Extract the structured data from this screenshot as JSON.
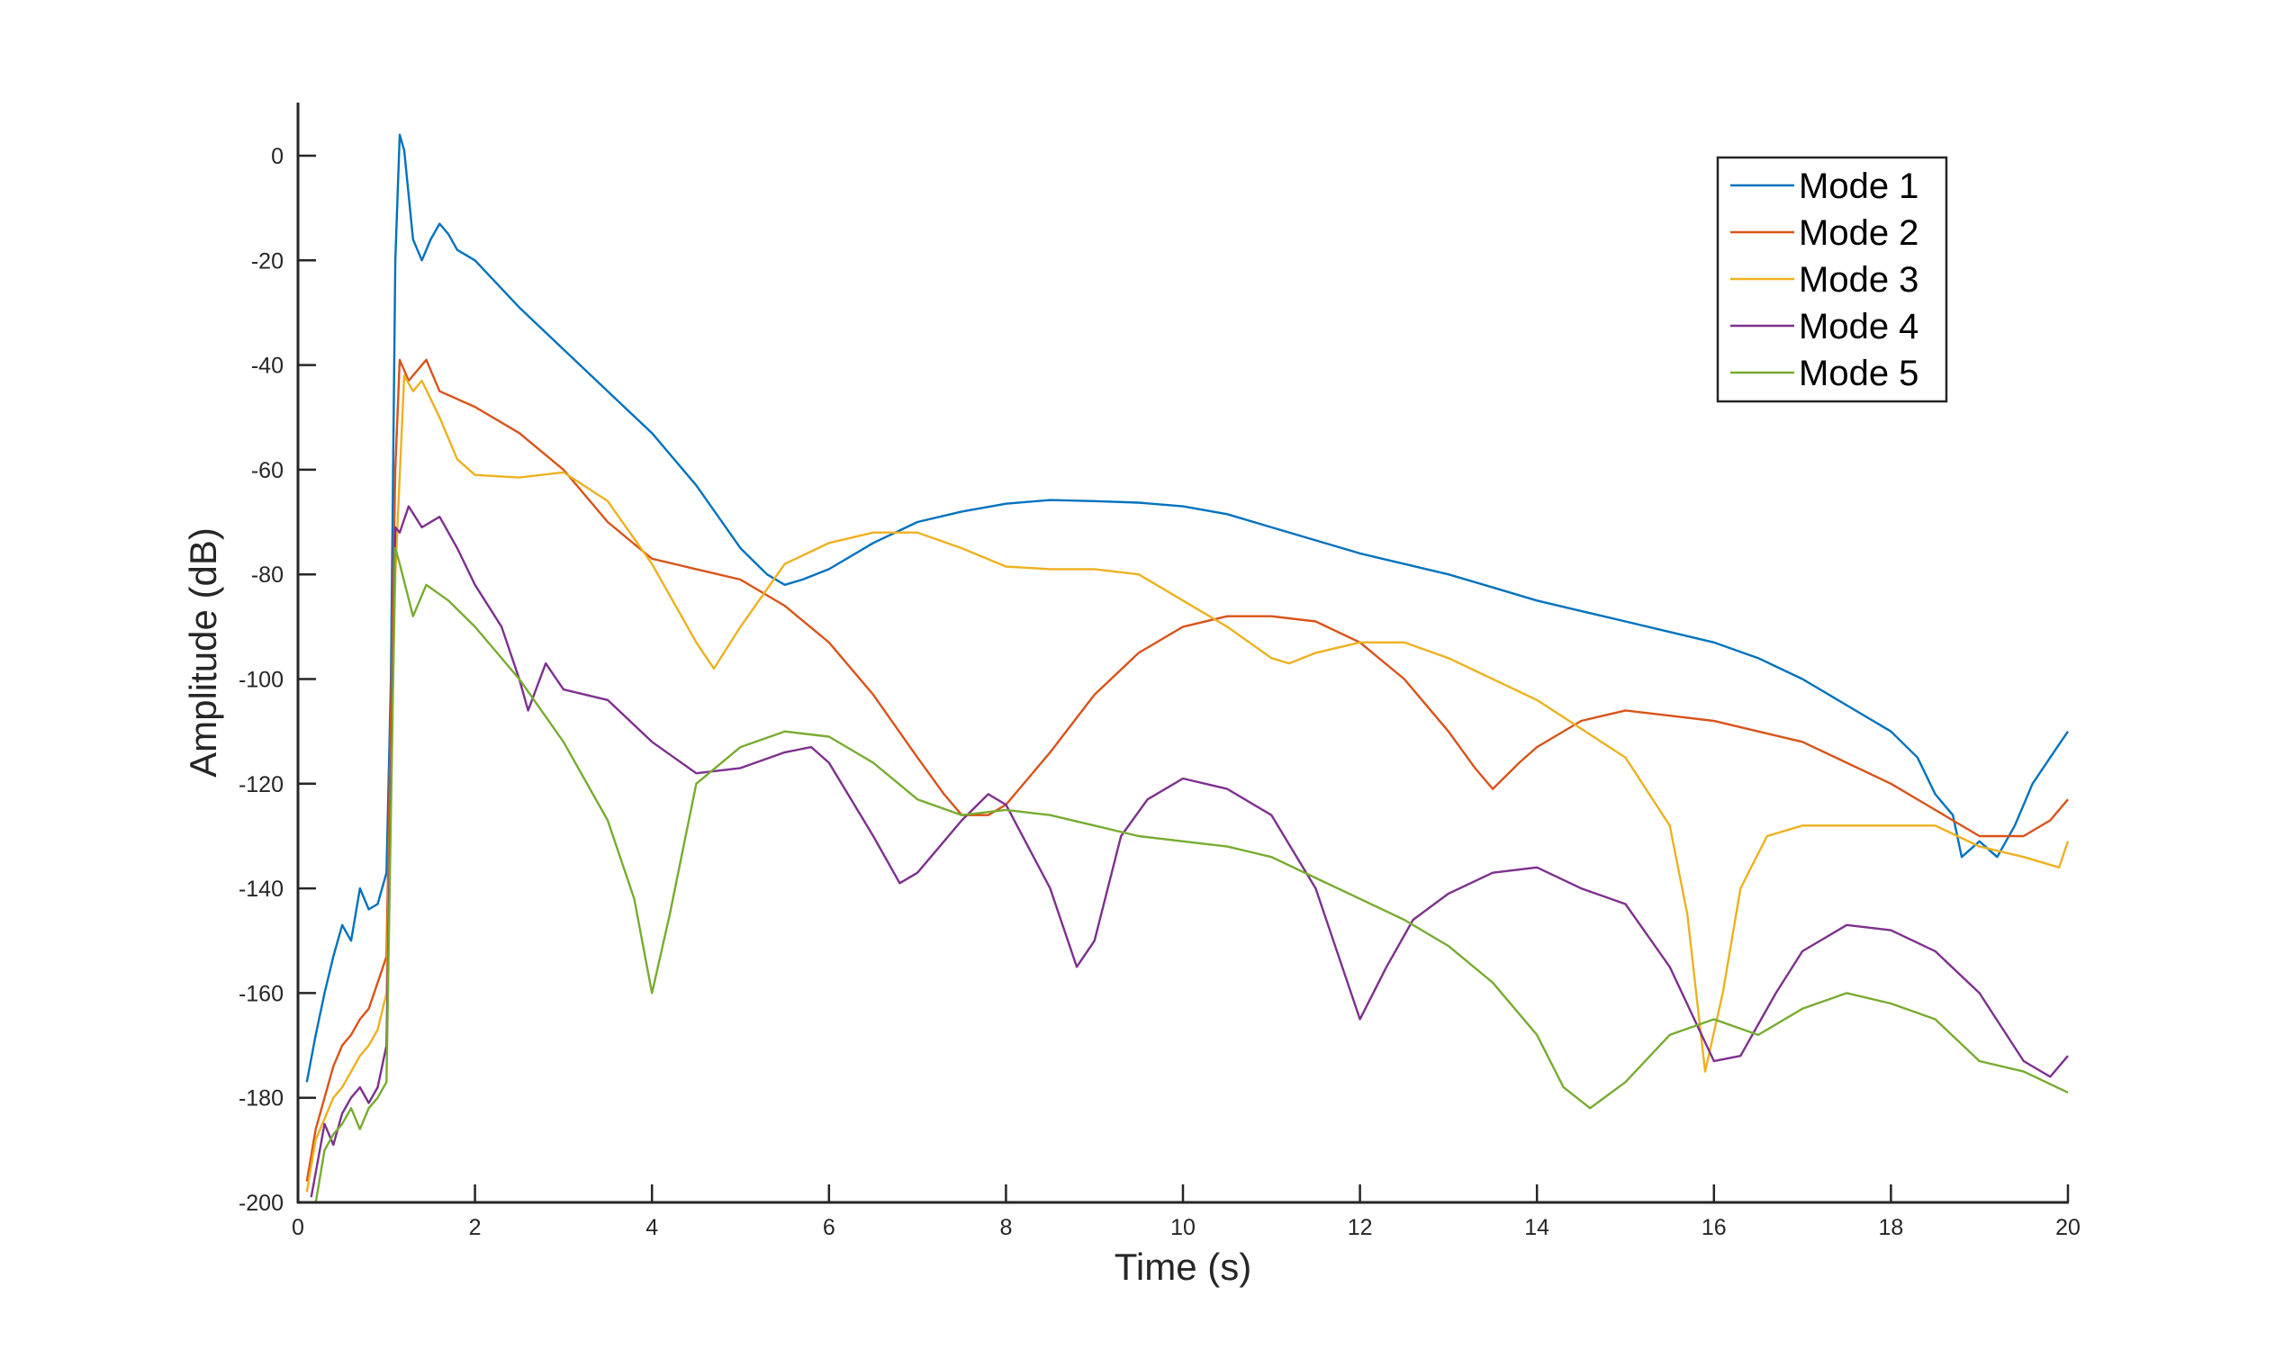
{
  "chart_data": {
    "type": "line",
    "title": "",
    "xlabel": "Time (s)",
    "ylabel": "Amplitude (dB)",
    "xlim": [
      0,
      20
    ],
    "ylim": [
      -200,
      10
    ],
    "xticks": [
      0,
      2,
      4,
      6,
      8,
      10,
      12,
      14,
      16,
      18,
      20
    ],
    "yticks": [
      0,
      -20,
      -40,
      -60,
      -80,
      -100,
      -120,
      -140,
      -160,
      -180,
      -200
    ],
    "grid": false,
    "legend_position": "upper right (inside)",
    "series": [
      {
        "name": "Mode 1",
        "color": "#0072BD",
        "points": [
          [
            0.1,
            -177
          ],
          [
            0.2,
            -168
          ],
          [
            0.3,
            -160
          ],
          [
            0.4,
            -153
          ],
          [
            0.5,
            -147
          ],
          [
            0.6,
            -150
          ],
          [
            0.7,
            -140
          ],
          [
            0.8,
            -144
          ],
          [
            0.9,
            -143
          ],
          [
            1.0,
            -137
          ],
          [
            1.05,
            -100
          ],
          [
            1.1,
            -20
          ],
          [
            1.15,
            4
          ],
          [
            1.2,
            1
          ],
          [
            1.3,
            -16
          ],
          [
            1.4,
            -20
          ],
          [
            1.5,
            -16
          ],
          [
            1.6,
            -13
          ],
          [
            1.7,
            -15
          ],
          [
            1.8,
            -18
          ],
          [
            2.0,
            -20
          ],
          [
            2.5,
            -29
          ],
          [
            3.0,
            -37
          ],
          [
            3.5,
            -45
          ],
          [
            4.0,
            -53
          ],
          [
            4.5,
            -63
          ],
          [
            5.0,
            -75
          ],
          [
            5.3,
            -80
          ],
          [
            5.5,
            -82
          ],
          [
            5.7,
            -81
          ],
          [
            6.0,
            -79
          ],
          [
            6.5,
            -74
          ],
          [
            7.0,
            -70
          ],
          [
            7.5,
            -68
          ],
          [
            8.0,
            -66.5
          ],
          [
            8.5,
            -65.8
          ],
          [
            9.0,
            -66
          ],
          [
            9.5,
            -66.3
          ],
          [
            10.0,
            -67
          ],
          [
            10.5,
            -68.5
          ],
          [
            11.0,
            -71
          ],
          [
            11.5,
            -73.5
          ],
          [
            12.0,
            -76
          ],
          [
            12.5,
            -78
          ],
          [
            13.0,
            -80
          ],
          [
            13.5,
            -82.5
          ],
          [
            14.0,
            -85
          ],
          [
            14.5,
            -87
          ],
          [
            15.0,
            -89
          ],
          [
            15.5,
            -91
          ],
          [
            16.0,
            -93
          ],
          [
            16.5,
            -96
          ],
          [
            17.0,
            -100
          ],
          [
            17.5,
            -105
          ],
          [
            18.0,
            -110
          ],
          [
            18.3,
            -115
          ],
          [
            18.5,
            -122
          ],
          [
            18.7,
            -126
          ],
          [
            18.8,
            -134
          ],
          [
            19.0,
            -131
          ],
          [
            19.2,
            -134
          ],
          [
            19.4,
            -128
          ],
          [
            19.6,
            -120
          ],
          [
            19.8,
            -115
          ],
          [
            20.0,
            -110
          ]
        ]
      },
      {
        "name": "Mode 2",
        "color": "#D95319",
        "points": [
          [
            0.1,
            -196
          ],
          [
            0.2,
            -186
          ],
          [
            0.3,
            -180
          ],
          [
            0.4,
            -174
          ],
          [
            0.5,
            -170
          ],
          [
            0.6,
            -168
          ],
          [
            0.7,
            -165
          ],
          [
            0.8,
            -163
          ],
          [
            0.9,
            -158
          ],
          [
            1.0,
            -153
          ],
          [
            1.1,
            -60
          ],
          [
            1.15,
            -39
          ],
          [
            1.25,
            -43
          ],
          [
            1.35,
            -41
          ],
          [
            1.45,
            -39
          ],
          [
            1.6,
            -45
          ],
          [
            2.0,
            -48
          ],
          [
            2.5,
            -53
          ],
          [
            3.0,
            -60
          ],
          [
            3.5,
            -70
          ],
          [
            4.0,
            -77
          ],
          [
            4.5,
            -79
          ],
          [
            5.0,
            -81
          ],
          [
            5.5,
            -86
          ],
          [
            6.0,
            -93
          ],
          [
            6.5,
            -103
          ],
          [
            7.0,
            -115
          ],
          [
            7.3,
            -122
          ],
          [
            7.5,
            -126
          ],
          [
            7.8,
            -126
          ],
          [
            8.0,
            -124
          ],
          [
            8.5,
            -114
          ],
          [
            9.0,
            -103
          ],
          [
            9.5,
            -95
          ],
          [
            10.0,
            -90
          ],
          [
            10.5,
            -88
          ],
          [
            11.0,
            -88
          ],
          [
            11.5,
            -89
          ],
          [
            12.0,
            -93
          ],
          [
            12.5,
            -100
          ],
          [
            13.0,
            -110
          ],
          [
            13.3,
            -117
          ],
          [
            13.5,
            -121
          ],
          [
            13.8,
            -116
          ],
          [
            14.0,
            -113
          ],
          [
            14.5,
            -108
          ],
          [
            15.0,
            -106
          ],
          [
            15.5,
            -107
          ],
          [
            16.0,
            -108
          ],
          [
            16.5,
            -110
          ],
          [
            17.0,
            -112
          ],
          [
            17.5,
            -116
          ],
          [
            18.0,
            -120
          ],
          [
            18.5,
            -125
          ],
          [
            19.0,
            -130
          ],
          [
            19.5,
            -130
          ],
          [
            19.8,
            -127
          ],
          [
            20.0,
            -123
          ]
        ]
      },
      {
        "name": "Mode 3",
        "color": "#EDB120",
        "points": [
          [
            0.1,
            -198
          ],
          [
            0.2,
            -188
          ],
          [
            0.3,
            -184
          ],
          [
            0.4,
            -180
          ],
          [
            0.5,
            -178
          ],
          [
            0.6,
            -175
          ],
          [
            0.7,
            -172
          ],
          [
            0.8,
            -170
          ],
          [
            0.9,
            -167
          ],
          [
            1.0,
            -160
          ],
          [
            1.1,
            -80
          ],
          [
            1.2,
            -42
          ],
          [
            1.3,
            -45
          ],
          [
            1.4,
            -43
          ],
          [
            1.6,
            -50
          ],
          [
            1.8,
            -58
          ],
          [
            2.0,
            -61
          ],
          [
            2.5,
            -61.5
          ],
          [
            3.0,
            -60.5
          ],
          [
            3.5,
            -66
          ],
          [
            4.0,
            -78
          ],
          [
            4.5,
            -93
          ],
          [
            4.7,
            -98
          ],
          [
            5.0,
            -90
          ],
          [
            5.5,
            -78
          ],
          [
            6.0,
            -74
          ],
          [
            6.5,
            -72
          ],
          [
            7.0,
            -72
          ],
          [
            7.5,
            -75
          ],
          [
            8.0,
            -78.5
          ],
          [
            8.5,
            -79
          ],
          [
            9.0,
            -79
          ],
          [
            9.5,
            -80
          ],
          [
            10.0,
            -85
          ],
          [
            10.5,
            -90
          ],
          [
            11.0,
            -96
          ],
          [
            11.2,
            -97
          ],
          [
            11.5,
            -95
          ],
          [
            12.0,
            -93
          ],
          [
            12.5,
            -93
          ],
          [
            13.0,
            -96
          ],
          [
            14.0,
            -104
          ],
          [
            15.0,
            -115
          ],
          [
            15.5,
            -128
          ],
          [
            15.7,
            -145
          ],
          [
            15.8,
            -160
          ],
          [
            15.9,
            -175
          ],
          [
            16.1,
            -160
          ],
          [
            16.3,
            -140
          ],
          [
            16.6,
            -130
          ],
          [
            17.0,
            -128
          ],
          [
            17.5,
            -128
          ],
          [
            18.0,
            -128
          ],
          [
            18.5,
            -128
          ],
          [
            19.0,
            -132
          ],
          [
            19.5,
            -134
          ],
          [
            19.9,
            -136
          ],
          [
            20.0,
            -131
          ]
        ]
      },
      {
        "name": "Mode 4",
        "color": "#7E2F8E",
        "points": [
          [
            0.15,
            -199
          ],
          [
            0.3,
            -185
          ],
          [
            0.4,
            -189
          ],
          [
            0.5,
            -183
          ],
          [
            0.6,
            -180
          ],
          [
            0.7,
            -178
          ],
          [
            0.8,
            -181
          ],
          [
            0.9,
            -178
          ],
          [
            1.0,
            -170
          ],
          [
            1.1,
            -71
          ],
          [
            1.15,
            -72
          ],
          [
            1.25,
            -67
          ],
          [
            1.4,
            -71
          ],
          [
            1.6,
            -69
          ],
          [
            1.8,
            -75
          ],
          [
            2.0,
            -82
          ],
          [
            2.3,
            -90
          ],
          [
            2.5,
            -100
          ],
          [
            2.6,
            -106
          ],
          [
            2.8,
            -97
          ],
          [
            3.0,
            -102
          ],
          [
            3.5,
            -104
          ],
          [
            4.0,
            -112
          ],
          [
            4.5,
            -118
          ],
          [
            5.0,
            -117
          ],
          [
            5.5,
            -114
          ],
          [
            5.8,
            -113
          ],
          [
            6.0,
            -116
          ],
          [
            6.5,
            -130
          ],
          [
            6.8,
            -139
          ],
          [
            7.0,
            -137
          ],
          [
            7.5,
            -127
          ],
          [
            7.8,
            -122
          ],
          [
            8.0,
            -124
          ],
          [
            8.5,
            -140
          ],
          [
            8.8,
            -155
          ],
          [
            9.0,
            -150
          ],
          [
            9.3,
            -130
          ],
          [
            9.6,
            -123
          ],
          [
            10.0,
            -119
          ],
          [
            10.5,
            -121
          ],
          [
            11.0,
            -126
          ],
          [
            11.5,
            -140
          ],
          [
            12.0,
            -165
          ],
          [
            12.3,
            -155
          ],
          [
            12.6,
            -146
          ],
          [
            13.0,
            -141
          ],
          [
            13.5,
            -137
          ],
          [
            14.0,
            -136
          ],
          [
            14.5,
            -140
          ],
          [
            15.0,
            -143
          ],
          [
            15.5,
            -155
          ],
          [
            16.0,
            -173
          ],
          [
            16.3,
            -172
          ],
          [
            16.7,
            -160
          ],
          [
            17.0,
            -152
          ],
          [
            17.5,
            -147
          ],
          [
            18.0,
            -148
          ],
          [
            18.5,
            -152
          ],
          [
            19.0,
            -160
          ],
          [
            19.5,
            -173
          ],
          [
            19.8,
            -176
          ],
          [
            20.0,
            -172
          ]
        ]
      },
      {
        "name": "Mode 5",
        "color": "#77AC30",
        "points": [
          [
            0.2,
            -200
          ],
          [
            0.3,
            -190
          ],
          [
            0.4,
            -187
          ],
          [
            0.5,
            -185
          ],
          [
            0.6,
            -182
          ],
          [
            0.7,
            -186
          ],
          [
            0.8,
            -182
          ],
          [
            0.9,
            -180
          ],
          [
            1.0,
            -177
          ],
          [
            1.1,
            -75
          ],
          [
            1.15,
            -78
          ],
          [
            1.3,
            -88
          ],
          [
            1.45,
            -82
          ],
          [
            1.7,
            -85
          ],
          [
            2.0,
            -90
          ],
          [
            2.5,
            -100
          ],
          [
            3.0,
            -112
          ],
          [
            3.5,
            -127
          ],
          [
            3.8,
            -142
          ],
          [
            4.0,
            -160
          ],
          [
            4.2,
            -145
          ],
          [
            4.5,
            -120
          ],
          [
            5.0,
            -113
          ],
          [
            5.5,
            -110
          ],
          [
            6.0,
            -111
          ],
          [
            6.5,
            -116
          ],
          [
            7.0,
            -123
          ],
          [
            7.5,
            -126
          ],
          [
            8.0,
            -125
          ],
          [
            8.5,
            -126
          ],
          [
            9.0,
            -128
          ],
          [
            9.5,
            -130
          ],
          [
            10.0,
            -131
          ],
          [
            10.5,
            -132
          ],
          [
            11.0,
            -134
          ],
          [
            11.5,
            -138
          ],
          [
            12.0,
            -142
          ],
          [
            12.5,
            -146
          ],
          [
            13.0,
            -151
          ],
          [
            13.5,
            -158
          ],
          [
            14.0,
            -168
          ],
          [
            14.3,
            -178
          ],
          [
            14.6,
            -182
          ],
          [
            15.0,
            -177
          ],
          [
            15.5,
            -168
          ],
          [
            16.0,
            -165
          ],
          [
            16.5,
            -168
          ],
          [
            17.0,
            -163
          ],
          [
            17.5,
            -160
          ],
          [
            18.0,
            -162
          ],
          [
            18.5,
            -165
          ],
          [
            19.0,
            -173
          ],
          [
            19.5,
            -175
          ],
          [
            20.0,
            -179
          ]
        ]
      }
    ]
  },
  "axes": {
    "xlabel": "Time (s)",
    "ylabel": "Amplitude (dB)",
    "xtick_labels": [
      "0",
      "2",
      "4",
      "6",
      "8",
      "10",
      "12",
      "14",
      "16",
      "18",
      "20"
    ],
    "ytick_labels": [
      "0",
      "-20",
      "-40",
      "-60",
      "-80",
      "-100",
      "-120",
      "-140",
      "-160",
      "-180",
      "-200"
    ]
  },
  "legend": {
    "items": [
      {
        "label": "Mode 1",
        "color": "#0072BD"
      },
      {
        "label": "Mode 2",
        "color": "#D95319"
      },
      {
        "label": "Mode 3",
        "color": "#EDB120"
      },
      {
        "label": "Mode 4",
        "color": "#7E2F8E"
      },
      {
        "label": "Mode 5",
        "color": "#77AC30"
      }
    ]
  }
}
